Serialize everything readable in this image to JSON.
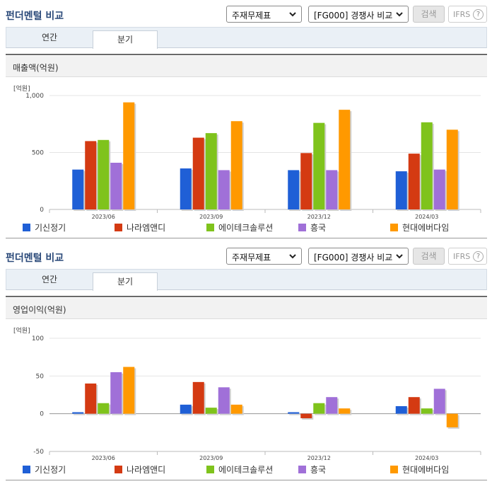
{
  "header": {
    "title": "펀더멘털 비교",
    "select_type": "주재무제표",
    "select_compare": "[FG000] 경쟁사 비교",
    "search_label": "검색",
    "ifrs_label": "IFRS",
    "help_label": "?"
  },
  "tabs": [
    "연간",
    "분기"
  ],
  "colors": [
    "#1f5fd6",
    "#d43a12",
    "#7fc31c",
    "#a070d8",
    "#ff9900"
  ],
  "legend": [
    "기신정기",
    "나라엠앤디",
    "에이테크솔루션",
    "흥국",
    "현대에버다임"
  ],
  "chart_data": [
    {
      "type": "bar",
      "title": "매출액(억원)",
      "unit": "[억원]",
      "categories": [
        "2023/06",
        "2023/09",
        "2023/12",
        "2024/03"
      ],
      "ylim": [
        0,
        1000
      ],
      "yticks": [
        0,
        500,
        1000
      ],
      "ytick_labels": [
        "0",
        "500",
        "1,000"
      ],
      "series": [
        {
          "name": "기신정기",
          "values": [
            350,
            360,
            345,
            335
          ]
        },
        {
          "name": "나라엠앤디",
          "values": [
            600,
            630,
            495,
            490
          ]
        },
        {
          "name": "에이테크솔루션",
          "values": [
            610,
            670,
            760,
            765
          ]
        },
        {
          "name": "흥국",
          "values": [
            410,
            345,
            345,
            350
          ]
        },
        {
          "name": "현대에버다임",
          "values": [
            940,
            775,
            875,
            700
          ]
        }
      ]
    },
    {
      "type": "bar",
      "title": "영업이익(억원)",
      "unit": "[억원]",
      "categories": [
        "2023/06",
        "2023/09",
        "2023/12",
        "2024/03"
      ],
      "ylim": [
        -50,
        100
      ],
      "yticks": [
        -50,
        0,
        50,
        100
      ],
      "ytick_labels": [
        "-50",
        "0",
        "50",
        "100"
      ],
      "series": [
        {
          "name": "기신정기",
          "values": [
            2,
            12,
            2,
            10
          ]
        },
        {
          "name": "나라엠앤디",
          "values": [
            40,
            42,
            -6,
            22
          ]
        },
        {
          "name": "에이테크솔루션",
          "values": [
            14,
            8,
            14,
            7
          ]
        },
        {
          "name": "흥국",
          "values": [
            55,
            35,
            22,
            33
          ]
        },
        {
          "name": "현대에버다임",
          "values": [
            62,
            12,
            7,
            -18
          ]
        }
      ]
    }
  ]
}
